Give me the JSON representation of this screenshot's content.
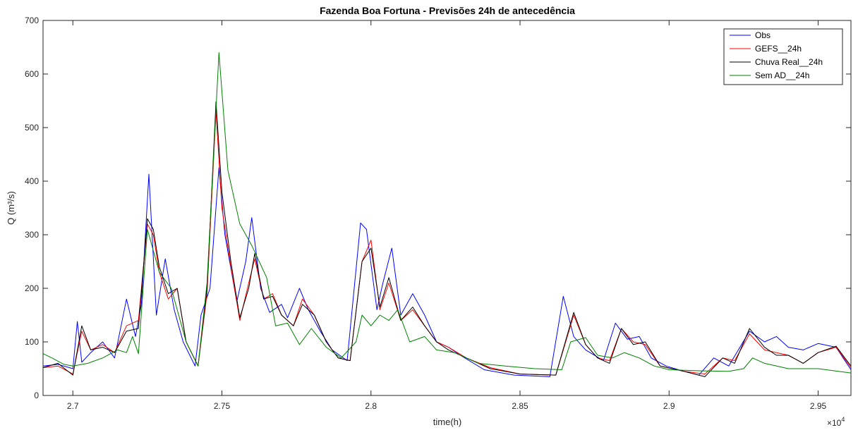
{
  "chart_data": {
    "type": "line",
    "title": "Fazenda Boa Fortuna - Previsões 24h de antecedência",
    "xlabel": "time(h)",
    "ylabel": "Q (m³/s)",
    "x_exponent_label": "×10",
    "x_exponent_power": "4",
    "xlim": [
      2.69,
      2.961
    ],
    "ylim": [
      0,
      700
    ],
    "xticks": [
      2.7,
      2.75,
      2.8,
      2.85,
      2.9,
      2.95
    ],
    "xtick_labels": [
      "2.7",
      "2.75",
      "2.8",
      "2.85",
      "2.9",
      "2.95"
    ],
    "yticks": [
      0,
      100,
      200,
      300,
      400,
      500,
      600,
      700
    ],
    "ytick_labels": [
      "0",
      "100",
      "200",
      "300",
      "400",
      "500",
      "600",
      "700"
    ],
    "grid": false,
    "legend_position": "top-right",
    "series": [
      {
        "name": "Obs",
        "color": "#0000ff",
        "points": [
          [
            2.69,
            55
          ],
          [
            2.695,
            58
          ],
          [
            2.7,
            50
          ],
          [
            2.7015,
            138
          ],
          [
            2.703,
            62
          ],
          [
            2.706,
            80
          ],
          [
            2.71,
            100
          ],
          [
            2.714,
            70
          ],
          [
            2.718,
            180
          ],
          [
            2.721,
            110
          ],
          [
            2.723,
            170
          ],
          [
            2.7255,
            413
          ],
          [
            2.728,
            150
          ],
          [
            2.731,
            255
          ],
          [
            2.734,
            160
          ],
          [
            2.737,
            100
          ],
          [
            2.741,
            55
          ],
          [
            2.743,
            150
          ],
          [
            2.746,
            200
          ],
          [
            2.749,
            425
          ],
          [
            2.751,
            300
          ],
          [
            2.755,
            175
          ],
          [
            2.758,
            250
          ],
          [
            2.76,
            332
          ],
          [
            2.763,
            200
          ],
          [
            2.766,
            155
          ],
          [
            2.77,
            170
          ],
          [
            2.772,
            145
          ],
          [
            2.776,
            200
          ],
          [
            2.779,
            160
          ],
          [
            2.783,
            120
          ],
          [
            2.787,
            85
          ],
          [
            2.792,
            65
          ],
          [
            2.7965,
            322
          ],
          [
            2.7985,
            310
          ],
          [
            2.802,
            160
          ],
          [
            2.804,
            210
          ],
          [
            2.807,
            275
          ],
          [
            2.81,
            150
          ],
          [
            2.814,
            190
          ],
          [
            2.818,
            150
          ],
          [
            2.822,
            100
          ],
          [
            2.826,
            90
          ],
          [
            2.83,
            75
          ],
          [
            2.838,
            48
          ],
          [
            2.848,
            38
          ],
          [
            2.86,
            35
          ],
          [
            2.8645,
            185
          ],
          [
            2.868,
            110
          ],
          [
            2.872,
            85
          ],
          [
            2.878,
            65
          ],
          [
            2.882,
            135
          ],
          [
            2.886,
            105
          ],
          [
            2.89,
            110
          ],
          [
            2.894,
            70
          ],
          [
            2.899,
            55
          ],
          [
            2.905,
            45
          ],
          [
            2.91,
            38
          ],
          [
            2.915,
            70
          ],
          [
            2.92,
            55
          ],
          [
            2.927,
            120
          ],
          [
            2.932,
            100
          ],
          [
            2.936,
            110
          ],
          [
            2.94,
            90
          ],
          [
            2.945,
            85
          ],
          [
            2.95,
            97
          ],
          [
            2.956,
            90
          ],
          [
            2.961,
            48
          ]
        ]
      },
      {
        "name": "GEFS__24h",
        "color": "#ff0000",
        "points": [
          [
            2.69,
            52
          ],
          [
            2.695,
            55
          ],
          [
            2.7,
            40
          ],
          [
            2.703,
            120
          ],
          [
            2.706,
            85
          ],
          [
            2.71,
            95
          ],
          [
            2.714,
            80
          ],
          [
            2.718,
            130
          ],
          [
            2.722,
            140
          ],
          [
            2.725,
            320
          ],
          [
            2.727,
            300
          ],
          [
            2.729,
            230
          ],
          [
            2.732,
            180
          ],
          [
            2.735,
            200
          ],
          [
            2.738,
            100
          ],
          [
            2.742,
            55
          ],
          [
            2.745,
            190
          ],
          [
            2.748,
            530
          ],
          [
            2.75,
            350
          ],
          [
            2.753,
            240
          ],
          [
            2.756,
            140
          ],
          [
            2.759,
            210
          ],
          [
            2.761,
            255
          ],
          [
            2.764,
            180
          ],
          [
            2.767,
            190
          ],
          [
            2.77,
            150
          ],
          [
            2.774,
            130
          ],
          [
            2.777,
            180
          ],
          [
            2.781,
            150
          ],
          [
            2.785,
            100
          ],
          [
            2.789,
            70
          ],
          [
            2.793,
            65
          ],
          [
            2.797,
            250
          ],
          [
            2.8,
            290
          ],
          [
            2.803,
            160
          ],
          [
            2.806,
            210
          ],
          [
            2.81,
            140
          ],
          [
            2.814,
            160
          ],
          [
            2.818,
            130
          ],
          [
            2.822,
            100
          ],
          [
            2.826,
            90
          ],
          [
            2.832,
            70
          ],
          [
            2.84,
            52
          ],
          [
            2.85,
            40
          ],
          [
            2.862,
            38
          ],
          [
            2.868,
            150
          ],
          [
            2.872,
            95
          ],
          [
            2.876,
            70
          ],
          [
            2.88,
            65
          ],
          [
            2.884,
            125
          ],
          [
            2.888,
            100
          ],
          [
            2.892,
            95
          ],
          [
            2.897,
            55
          ],
          [
            2.905,
            45
          ],
          [
            2.912,
            40
          ],
          [
            2.918,
            70
          ],
          [
            2.922,
            65
          ],
          [
            2.927,
            115
          ],
          [
            2.932,
            85
          ],
          [
            2.936,
            80
          ],
          [
            2.94,
            75
          ],
          [
            2.945,
            60
          ],
          [
            2.95,
            80
          ],
          [
            2.956,
            90
          ],
          [
            2.961,
            52
          ]
        ]
      },
      {
        "name": "Chuva Real__24h",
        "color": "#000000",
        "points": [
          [
            2.69,
            52
          ],
          [
            2.695,
            60
          ],
          [
            2.7,
            38
          ],
          [
            2.703,
            130
          ],
          [
            2.706,
            85
          ],
          [
            2.71,
            90
          ],
          [
            2.714,
            80
          ],
          [
            2.718,
            120
          ],
          [
            2.722,
            125
          ],
          [
            2.725,
            330
          ],
          [
            2.727,
            310
          ],
          [
            2.729,
            240
          ],
          [
            2.732,
            190
          ],
          [
            2.735,
            200
          ],
          [
            2.738,
            100
          ],
          [
            2.742,
            55
          ],
          [
            2.745,
            200
          ],
          [
            2.748,
            548
          ],
          [
            2.75,
            380
          ],
          [
            2.753,
            250
          ],
          [
            2.756,
            145
          ],
          [
            2.759,
            200
          ],
          [
            2.761,
            265
          ],
          [
            2.764,
            180
          ],
          [
            2.767,
            185
          ],
          [
            2.77,
            150
          ],
          [
            2.774,
            130
          ],
          [
            2.777,
            170
          ],
          [
            2.781,
            150
          ],
          [
            2.785,
            100
          ],
          [
            2.789,
            70
          ],
          [
            2.793,
            65
          ],
          [
            2.797,
            250
          ],
          [
            2.8,
            275
          ],
          [
            2.803,
            165
          ],
          [
            2.806,
            220
          ],
          [
            2.81,
            140
          ],
          [
            2.814,
            165
          ],
          [
            2.818,
            130
          ],
          [
            2.822,
            100
          ],
          [
            2.826,
            85
          ],
          [
            2.832,
            70
          ],
          [
            2.84,
            50
          ],
          [
            2.85,
            40
          ],
          [
            2.862,
            38
          ],
          [
            2.868,
            155
          ],
          [
            2.872,
            95
          ],
          [
            2.876,
            70
          ],
          [
            2.88,
            60
          ],
          [
            2.884,
            125
          ],
          [
            2.888,
            95
          ],
          [
            2.892,
            100
          ],
          [
            2.897,
            55
          ],
          [
            2.905,
            45
          ],
          [
            2.912,
            35
          ],
          [
            2.918,
            70
          ],
          [
            2.922,
            60
          ],
          [
            2.927,
            125
          ],
          [
            2.932,
            90
          ],
          [
            2.936,
            75
          ],
          [
            2.94,
            75
          ],
          [
            2.945,
            60
          ],
          [
            2.95,
            80
          ],
          [
            2.956,
            92
          ],
          [
            2.961,
            55
          ]
        ]
      },
      {
        "name": "Sem AD__24h",
        "color": "#008000",
        "points": [
          [
            2.69,
            78
          ],
          [
            2.693,
            70
          ],
          [
            2.697,
            58
          ],
          [
            2.7,
            55
          ],
          [
            2.705,
            60
          ],
          [
            2.71,
            70
          ],
          [
            2.715,
            85
          ],
          [
            2.718,
            80
          ],
          [
            2.72,
            110
          ],
          [
            2.722,
            78
          ],
          [
            2.725,
            310
          ],
          [
            2.729,
            230
          ],
          [
            2.733,
            200
          ],
          [
            2.738,
            100
          ],
          [
            2.742,
            55
          ],
          [
            2.745,
            210
          ],
          [
            2.749,
            640
          ],
          [
            2.752,
            420
          ],
          [
            2.756,
            320
          ],
          [
            2.76,
            280
          ],
          [
            2.765,
            220
          ],
          [
            2.768,
            130
          ],
          [
            2.772,
            135
          ],
          [
            2.776,
            95
          ],
          [
            2.78,
            125
          ],
          [
            2.785,
            90
          ],
          [
            2.79,
            70
          ],
          [
            2.795,
            100
          ],
          [
            2.797,
            150
          ],
          [
            2.8,
            130
          ],
          [
            2.803,
            150
          ],
          [
            2.806,
            140
          ],
          [
            2.809,
            160
          ],
          [
            2.813,
            100
          ],
          [
            2.818,
            110
          ],
          [
            2.822,
            85
          ],
          [
            2.828,
            80
          ],
          [
            2.836,
            60
          ],
          [
            2.845,
            55
          ],
          [
            2.855,
            50
          ],
          [
            2.864,
            48
          ],
          [
            2.867,
            100
          ],
          [
            2.872,
            108
          ],
          [
            2.876,
            75
          ],
          [
            2.881,
            70
          ],
          [
            2.885,
            80
          ],
          [
            2.89,
            70
          ],
          [
            2.895,
            55
          ],
          [
            2.9,
            48
          ],
          [
            2.91,
            46
          ],
          [
            2.92,
            45
          ],
          [
            2.925,
            50
          ],
          [
            2.928,
            70
          ],
          [
            2.932,
            60
          ],
          [
            2.94,
            50
          ],
          [
            2.95,
            50
          ],
          [
            2.961,
            42
          ]
        ]
      }
    ]
  }
}
